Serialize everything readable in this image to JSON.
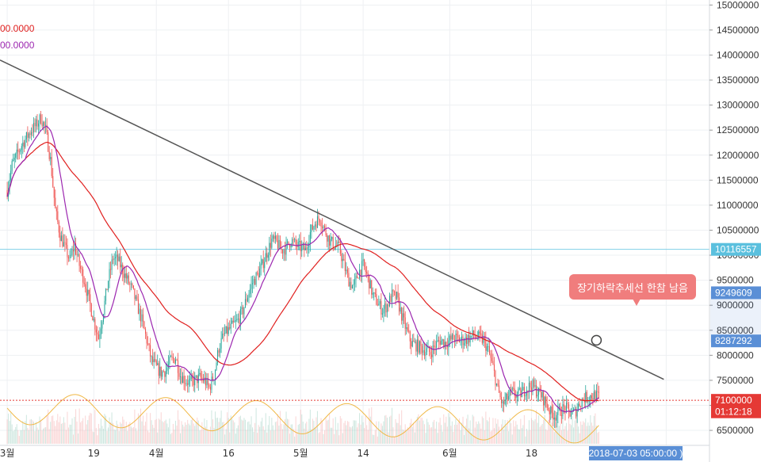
{
  "chart_data": {
    "type": "candlestick",
    "title": "",
    "legend": [
      {
        "text": "00.0000",
        "color": "#e0201f"
      },
      {
        "text": "00.0000",
        "color": "#9c27b0"
      }
    ],
    "y_ticks": [
      "15000000",
      "14500000",
      "14000000",
      "13500000",
      "13000000",
      "12500000",
      "12000000",
      "11500000",
      "11000000",
      "10500000",
      "10000000",
      "9500000",
      "9000000",
      "8500000",
      "8000000",
      "7500000",
      "7000000",
      "6500000"
    ],
    "y_tick_values": [
      15000000,
      14500000,
      14000000,
      13500000,
      13000000,
      12500000,
      12000000,
      11500000,
      11000000,
      10500000,
      10000000,
      9500000,
      9000000,
      8500000,
      8000000,
      7500000,
      7000000,
      6500000
    ],
    "ylim": [
      6200000,
      15100000
    ],
    "x_ticks": [
      {
        "label": "3월",
        "day": 0
      },
      {
        "label": "19",
        "day": 18
      },
      {
        "label": "4월",
        "day": 31
      },
      {
        "label": "16",
        "day": 46
      },
      {
        "label": "5월",
        "day": 61
      },
      {
        "label": "14",
        "day": 74
      },
      {
        "label": "6월",
        "day": 92
      },
      {
        "label": "18",
        "day": 109
      },
      {
        "label": "16",
        "day": 137
      }
    ],
    "xlim": [
      -1.5,
      146
    ],
    "price_markers": [
      {
        "label": "10116557",
        "value": 10116557,
        "bg": "#5bc0de",
        "color": "#ffffff",
        "line_color": "#7fd0e8",
        "line": "solid"
      },
      {
        "label": "9249609",
        "value": 9249609,
        "bg": "#5a8fd6",
        "color": "#ffffff",
        "line": "none"
      },
      {
        "label": "8287292",
        "value": 8287292,
        "bg": "#5a8fd6",
        "color": "#ffffff",
        "line": "none"
      },
      {
        "label": "7100000",
        "value": 7100000,
        "bg": "#e53935",
        "color": "#ffffff",
        "line_color": "#e53935",
        "line": "dotted"
      },
      {
        "label": "01:12:18",
        "value": 6870000,
        "bg": "#e53935",
        "color": "#ffffff",
        "line": "none"
      }
    ],
    "date_label": "2018-07-03 05:00:00 )",
    "trendline": {
      "start": {
        "day": -1.5,
        "price": 13900000
      },
      "end": {
        "day": 136.5,
        "price": 7520000
      }
    },
    "callout": {
      "text": "장기하락추세선 한참 남음",
      "point": {
        "day": 122.5,
        "price": 8300000
      }
    },
    "close_keypoints": [
      [
        0,
        11300000
      ],
      [
        1,
        11800000
      ],
      [
        2,
        12000000
      ],
      [
        3,
        12200000
      ],
      [
        4,
        12350000
      ],
      [
        5,
        12500000
      ],
      [
        6,
        12600000
      ],
      [
        7,
        12750000
      ],
      [
        8,
        12500000
      ],
      [
        9,
        11900000
      ],
      [
        10,
        10900000
      ],
      [
        11,
        10400000
      ],
      [
        12,
        10150000
      ],
      [
        13,
        9900000
      ],
      [
        14,
        10200000
      ],
      [
        15,
        9800000
      ],
      [
        16,
        9500000
      ],
      [
        17,
        9100000
      ],
      [
        18,
        8700000
      ],
      [
        19,
        8350000
      ],
      [
        20,
        8900000
      ],
      [
        21,
        9500000
      ],
      [
        22,
        9950000
      ],
      [
        23,
        9900000
      ],
      [
        24,
        9700000
      ],
      [
        25,
        9500000
      ],
      [
        26,
        9300000
      ],
      [
        27,
        9000000
      ],
      [
        28,
        8700000
      ],
      [
        29,
        8300000
      ],
      [
        30,
        7900000
      ],
      [
        31,
        7750000
      ],
      [
        32,
        7650000
      ],
      [
        33,
        7700000
      ],
      [
        34,
        7900000
      ],
      [
        35,
        7950000
      ],
      [
        36,
        7600000
      ],
      [
        37,
        7500000
      ],
      [
        38,
        7450000
      ],
      [
        39,
        7500000
      ],
      [
        40,
        7550000
      ],
      [
        41,
        7500000
      ],
      [
        42,
        7350000
      ],
      [
        43,
        7600000
      ],
      [
        44,
        8150000
      ],
      [
        45,
        8400000
      ],
      [
        46,
        8500000
      ],
      [
        47,
        8600000
      ],
      [
        48,
        8700000
      ],
      [
        49,
        8900000
      ],
      [
        50,
        9200000
      ],
      [
        51,
        9450000
      ],
      [
        52,
        9600000
      ],
      [
        53,
        9800000
      ],
      [
        54,
        10050000
      ],
      [
        55,
        10300000
      ],
      [
        56,
        10250000
      ],
      [
        57,
        10100000
      ],
      [
        58,
        10150000
      ],
      [
        59,
        10300000
      ],
      [
        60,
        10200000
      ],
      [
        61,
        10150000
      ],
      [
        62,
        10100000
      ],
      [
        63,
        10450000
      ],
      [
        64,
        10650000
      ],
      [
        65,
        10750000
      ],
      [
        66,
        10500000
      ],
      [
        67,
        10300000
      ],
      [
        68,
        10200000
      ],
      [
        69,
        10150000
      ],
      [
        70,
        9800000
      ],
      [
        71,
        9500000
      ],
      [
        72,
        9350000
      ],
      [
        73,
        9650000
      ],
      [
        74,
        9800000
      ],
      [
        75,
        9550000
      ],
      [
        76,
        9200000
      ],
      [
        77,
        9050000
      ],
      [
        78,
        8900000
      ],
      [
        79,
        9000000
      ],
      [
        80,
        9200000
      ],
      [
        81,
        9150000
      ],
      [
        82,
        8800000
      ],
      [
        83,
        8500000
      ],
      [
        84,
        8250000
      ],
      [
        85,
        8200000
      ],
      [
        86,
        8150000
      ],
      [
        87,
        8100000
      ],
      [
        88,
        8050000
      ],
      [
        89,
        8200000
      ],
      [
        90,
        8300000
      ],
      [
        91,
        8250000
      ],
      [
        92,
        8300000
      ],
      [
        93,
        8350000
      ],
      [
        94,
        8300000
      ],
      [
        95,
        8300000
      ],
      [
        96,
        8350000
      ],
      [
        97,
        8400000
      ],
      [
        98,
        8350000
      ],
      [
        99,
        8300000
      ],
      [
        100,
        8100000
      ],
      [
        101,
        7750000
      ],
      [
        102,
        7300000
      ],
      [
        103,
        7000000
      ],
      [
        104,
        7150000
      ],
      [
        105,
        7250000
      ],
      [
        106,
        7200000
      ],
      [
        107,
        7250000
      ],
      [
        108,
        7350000
      ],
      [
        109,
        7400000
      ],
      [
        110,
        7300000
      ],
      [
        111,
        7200000
      ],
      [
        112,
        7050000
      ],
      [
        113,
        6850000
      ],
      [
        114,
        6800000
      ],
      [
        115,
        6900000
      ],
      [
        116,
        6950000
      ],
      [
        117,
        6850000
      ],
      [
        118,
        6850000
      ],
      [
        119,
        7050000
      ],
      [
        120,
        7150000
      ],
      [
        121,
        7180000
      ],
      [
        122,
        7200000
      ],
      [
        123,
        7160000
      ]
    ],
    "series": [
      {
        "name": "",
        "kind": "ma",
        "period": 18,
        "color": "#e0201f"
      },
      {
        "name": "",
        "kind": "ma",
        "period": 4,
        "color": "#9c27b0"
      }
    ],
    "volume_scale": 280,
    "grid": true
  }
}
